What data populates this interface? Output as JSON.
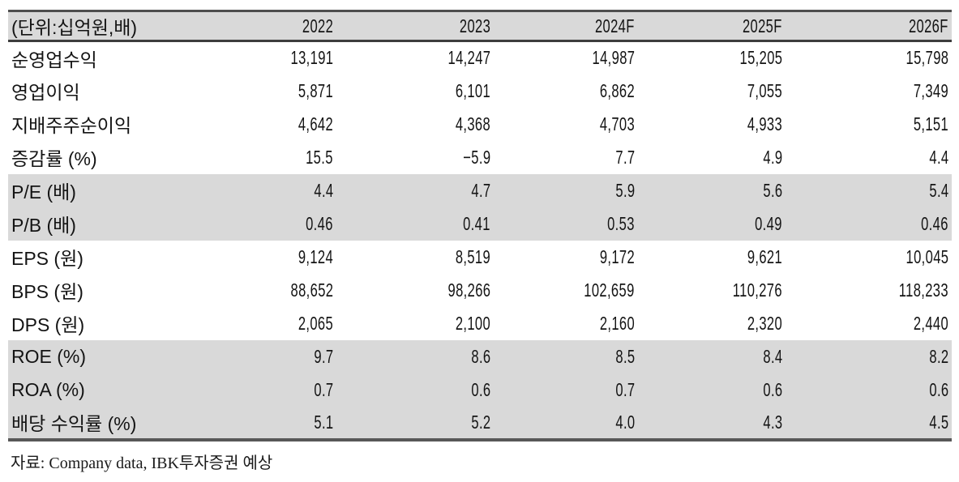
{
  "table": {
    "unit_label": "(단위:십억원,배)",
    "columns": [
      "2022",
      "2023",
      "2024F",
      "2025F",
      "2026F"
    ],
    "rows": [
      {
        "label": "순영업수익",
        "values": [
          "13,191",
          "14,247",
          "14,987",
          "15,205",
          "15,798"
        ],
        "shaded": false
      },
      {
        "label": "영업이익",
        "values": [
          "5,871",
          "6,101",
          "6,862",
          "7,055",
          "7,349"
        ],
        "shaded": false
      },
      {
        "label": "지배주주순이익",
        "values": [
          "4,642",
          "4,368",
          "4,703",
          "4,933",
          "5,151"
        ],
        "shaded": false
      },
      {
        "label": "증감률 (%)",
        "values": [
          "15.5",
          "−5.9",
          "7.7",
          "4.9",
          "4.4"
        ],
        "shaded": false
      },
      {
        "label": "P/E (배)",
        "values": [
          "4.4",
          "4.7",
          "5.9",
          "5.6",
          "5.4"
        ],
        "shaded": true
      },
      {
        "label": "P/B (배)",
        "values": [
          "0.46",
          "0.41",
          "0.53",
          "0.49",
          "0.46"
        ],
        "shaded": true
      },
      {
        "label": "EPS (원)",
        "values": [
          "9,124",
          "8,519",
          "9,172",
          "9,621",
          "10,045"
        ],
        "shaded": false
      },
      {
        "label": "BPS (원)",
        "values": [
          "88,652",
          "98,266",
          "102,659",
          "110,276",
          "118,233"
        ],
        "shaded": false
      },
      {
        "label": "DPS (원)",
        "values": [
          "2,065",
          "2,100",
          "2,160",
          "2,320",
          "2,440"
        ],
        "shaded": false
      },
      {
        "label": "ROE (%)",
        "values": [
          "9.7",
          "8.6",
          "8.5",
          "8.4",
          "8.2"
        ],
        "shaded": true
      },
      {
        "label": "ROA (%)",
        "values": [
          "0.7",
          "0.6",
          "0.7",
          "0.6",
          "0.6"
        ],
        "shaded": true
      },
      {
        "label": "배당 수익률 (%)",
        "values": [
          "5.1",
          "5.2",
          "4.0",
          "4.3",
          "4.5"
        ],
        "shaded": true
      }
    ]
  },
  "footer": {
    "source_note": "자료: Company data, IBK투자증권 예상"
  },
  "colors": {
    "row_shade": "#d9d9d9",
    "header_shade": "#d9d9d9",
    "border_dark": "#4e4e4e",
    "text": "#141414"
  }
}
